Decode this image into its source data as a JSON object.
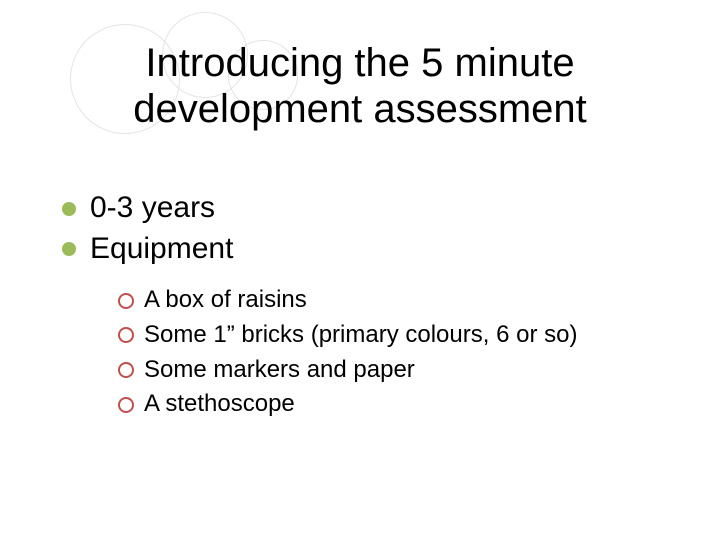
{
  "colors": {
    "bullet_l1": "#9bbb59",
    "bullet_l2_border": "#c0504d",
    "circle_border": "#e4e4e4",
    "text": "#000000",
    "background": "#ffffff"
  },
  "title": "Introducing the 5 minute development assessment",
  "bullets": {
    "level1": [
      {
        "label": "0-3 years"
      },
      {
        "label": "Equipment"
      }
    ],
    "level2": [
      {
        "label": "A box of raisins"
      },
      {
        "label": "Some 1” bricks (primary colours, 6 or so)"
      },
      {
        "label": "Some markers and paper"
      },
      {
        "label": "A stethoscope"
      }
    ]
  },
  "typography": {
    "title_fontsize": 40,
    "l1_fontsize": 30,
    "l2_fontsize": 24,
    "font_family": "Arial"
  }
}
